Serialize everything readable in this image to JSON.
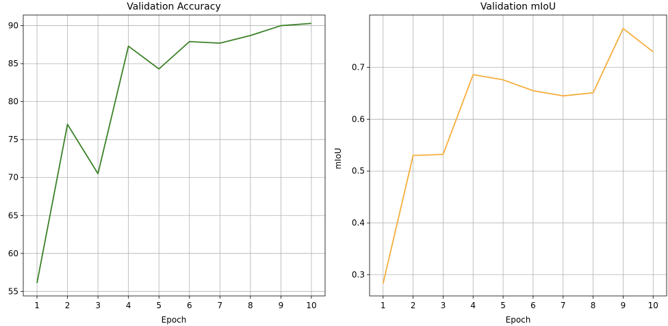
{
  "chart_data": [
    {
      "type": "line",
      "title": "Validation Accuracy",
      "xlabel": "Epoch",
      "ylabel": "",
      "x": [
        1,
        2,
        3,
        4,
        5,
        6,
        7,
        8,
        9,
        10
      ],
      "series": [
        {
          "values": [
            56.1,
            77.0,
            70.5,
            87.3,
            84.3,
            87.9,
            87.7,
            88.7,
            90.0,
            90.3
          ],
          "color": "#3a8026"
        }
      ],
      "xlim": [
        0.55,
        10.45
      ],
      "ylim": [
        54.4,
        91.4
      ],
      "xticks": [
        "1",
        "2",
        "3",
        "4",
        "5",
        "6",
        "7",
        "8",
        "9",
        "10"
      ],
      "yticks": [
        "55",
        "60",
        "65",
        "70",
        "75",
        "80",
        "85",
        "90"
      ],
      "grid": true
    },
    {
      "type": "line",
      "title": "Validation mIoU",
      "xlabel": "Epoch",
      "ylabel": "mIoU",
      "x": [
        1,
        2,
        3,
        4,
        5,
        6,
        7,
        8,
        9,
        10
      ],
      "series": [
        {
          "values": [
            0.283,
            0.53,
            0.532,
            0.686,
            0.676,
            0.655,
            0.645,
            0.651,
            0.775,
            0.73
          ],
          "color": "#f5ad3b"
        }
      ],
      "xlim": [
        0.55,
        10.45
      ],
      "ylim": [
        0.259,
        0.801
      ],
      "xticks": [
        "1",
        "2",
        "3",
        "4",
        "5",
        "6",
        "7",
        "8",
        "9",
        "10"
      ],
      "yticks": [
        "0.3",
        "0.4",
        "0.5",
        "0.6",
        "0.7"
      ],
      "grid": true
    }
  ]
}
